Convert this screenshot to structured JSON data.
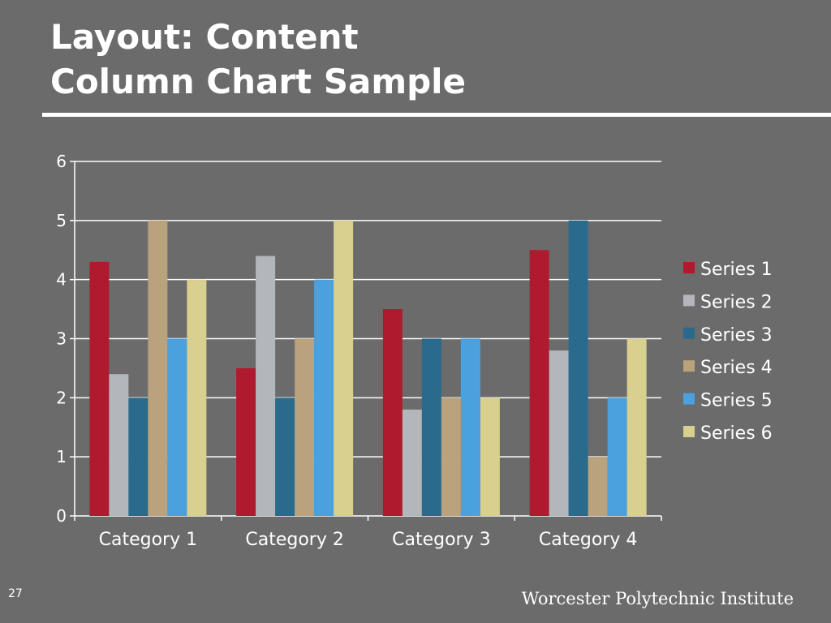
{
  "slide": {
    "title_line1": "Layout: Content",
    "title_line2": "Column Chart Sample",
    "page_number": "27",
    "footer": "Worcester Polytechnic Institute"
  },
  "chart_data": {
    "type": "bar",
    "categories": [
      "Category 1",
      "Category 2",
      "Category 3",
      "Category 4"
    ],
    "series": [
      {
        "name": "Series 1",
        "color": "#b01a2e",
        "values": [
          4.3,
          2.5,
          3.5,
          4.5
        ]
      },
      {
        "name": "Series 2",
        "color": "#b3b6ba",
        "values": [
          2.4,
          4.4,
          1.8,
          2.8
        ]
      },
      {
        "name": "Series 3",
        "color": "#2a6a8c",
        "values": [
          2.0,
          2.0,
          3.0,
          5.0
        ]
      },
      {
        "name": "Series 4",
        "color": "#b9a27c",
        "values": [
          5.0,
          3.0,
          2.0,
          1.0
        ]
      },
      {
        "name": "Series 5",
        "color": "#4aa1dd",
        "values": [
          3.0,
          4.0,
          3.0,
          2.0
        ]
      },
      {
        "name": "Series 6",
        "color": "#d9cf8f",
        "values": [
          4.0,
          5.0,
          2.0,
          3.0
        ]
      }
    ],
    "ylim": [
      0,
      6
    ],
    "yticks": [
      0,
      1,
      2,
      3,
      4,
      5,
      6
    ],
    "grid": true,
    "legend": "right"
  }
}
